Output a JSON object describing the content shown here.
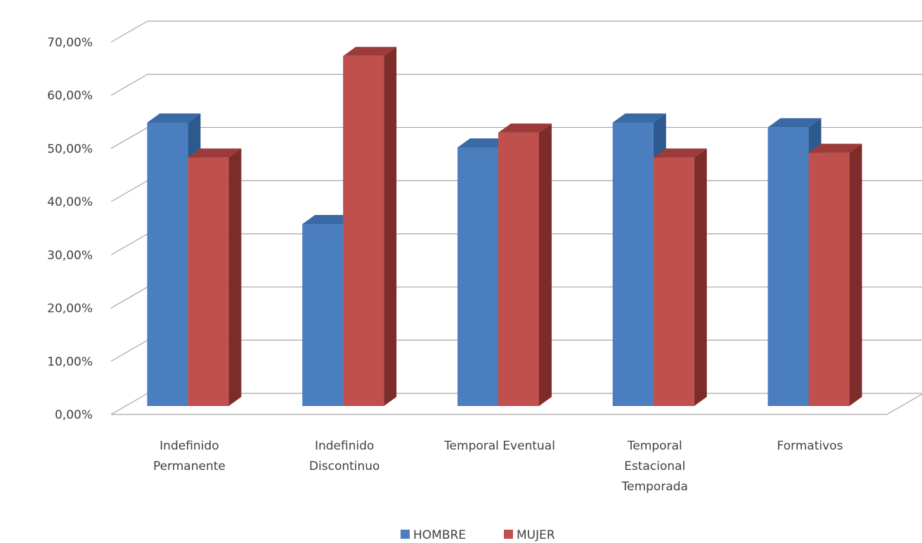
{
  "chart_data": {
    "type": "bar",
    "categories": [
      [
        "Indefinido",
        "Permanente"
      ],
      [
        "Indefinido",
        "Discontinuo"
      ],
      [
        "Temporal Eventual"
      ],
      [
        "Temporal",
        "Estacional",
        "Temporada"
      ],
      [
        "Formativos"
      ]
    ],
    "series": [
      {
        "name": "HOMBRE",
        "values": [
          53.3,
          34.2,
          48.6,
          53.3,
          52.4
        ]
      },
      {
        "name": "MUJER",
        "values": [
          46.7,
          65.8,
          51.4,
          46.7,
          47.6
        ]
      }
    ],
    "y_ticks": [
      "0,00%",
      "10,00%",
      "20,00%",
      "30,00%",
      "40,00%",
      "50,00%",
      "60,00%",
      "70,00%"
    ],
    "ylim": [
      0,
      70
    ],
    "grid": true,
    "legend_position": "bottom",
    "colors": {
      "HOMBRE": {
        "front": "#4a7ebf",
        "side": "#2d5a8e",
        "top": "#3a6aa5"
      },
      "MUJER": {
        "front": "#c0504d",
        "side": "#7d2c2a",
        "top": "#9c3b39"
      },
      "grid": "#a6a6a6"
    }
  }
}
